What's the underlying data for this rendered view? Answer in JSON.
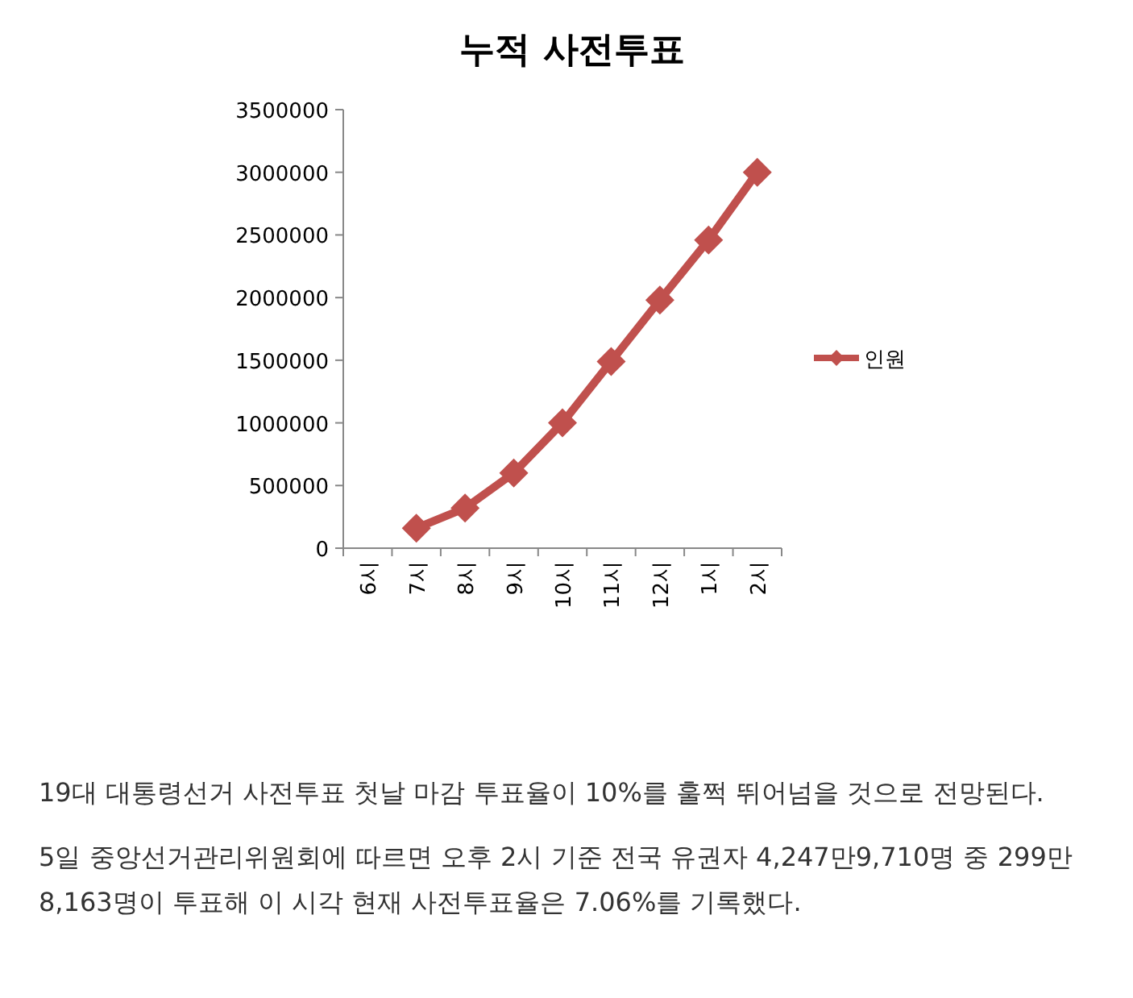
{
  "chart_data": {
    "type": "line",
    "title": "누적 사전투표",
    "categories": [
      "6시",
      "7시",
      "8시",
      "9시",
      "10시",
      "11시",
      "12시",
      "1시",
      "2시"
    ],
    "series": [
      {
        "name": "인원",
        "color": "#c0504d",
        "values": [
          null,
          160000,
          320000,
          600000,
          1000000,
          1490000,
          1980000,
          2460000,
          3000000
        ]
      }
    ],
    "ylim": [
      0,
      3500000
    ],
    "yticks": [
      0,
      500000,
      1000000,
      1500000,
      2000000,
      2500000,
      3000000,
      3500000
    ],
    "grid": false,
    "legend": "right",
    "marker": "diamond",
    "line_style": "solid",
    "annotations": [
      "19대 대통령선거 사전투표 첫날 마감 투표율이 10%를 훌쩍 뛰어넘을 것으로 전망된다.",
      "5일 중앙선거관리위원회에 따르면 오후 2시 기준 전국 유권자 4,247만9,710명 중 299만8,163명이 투표해 이 시각 현재 사전투표율은 7.06%를 기록했다."
    ]
  }
}
